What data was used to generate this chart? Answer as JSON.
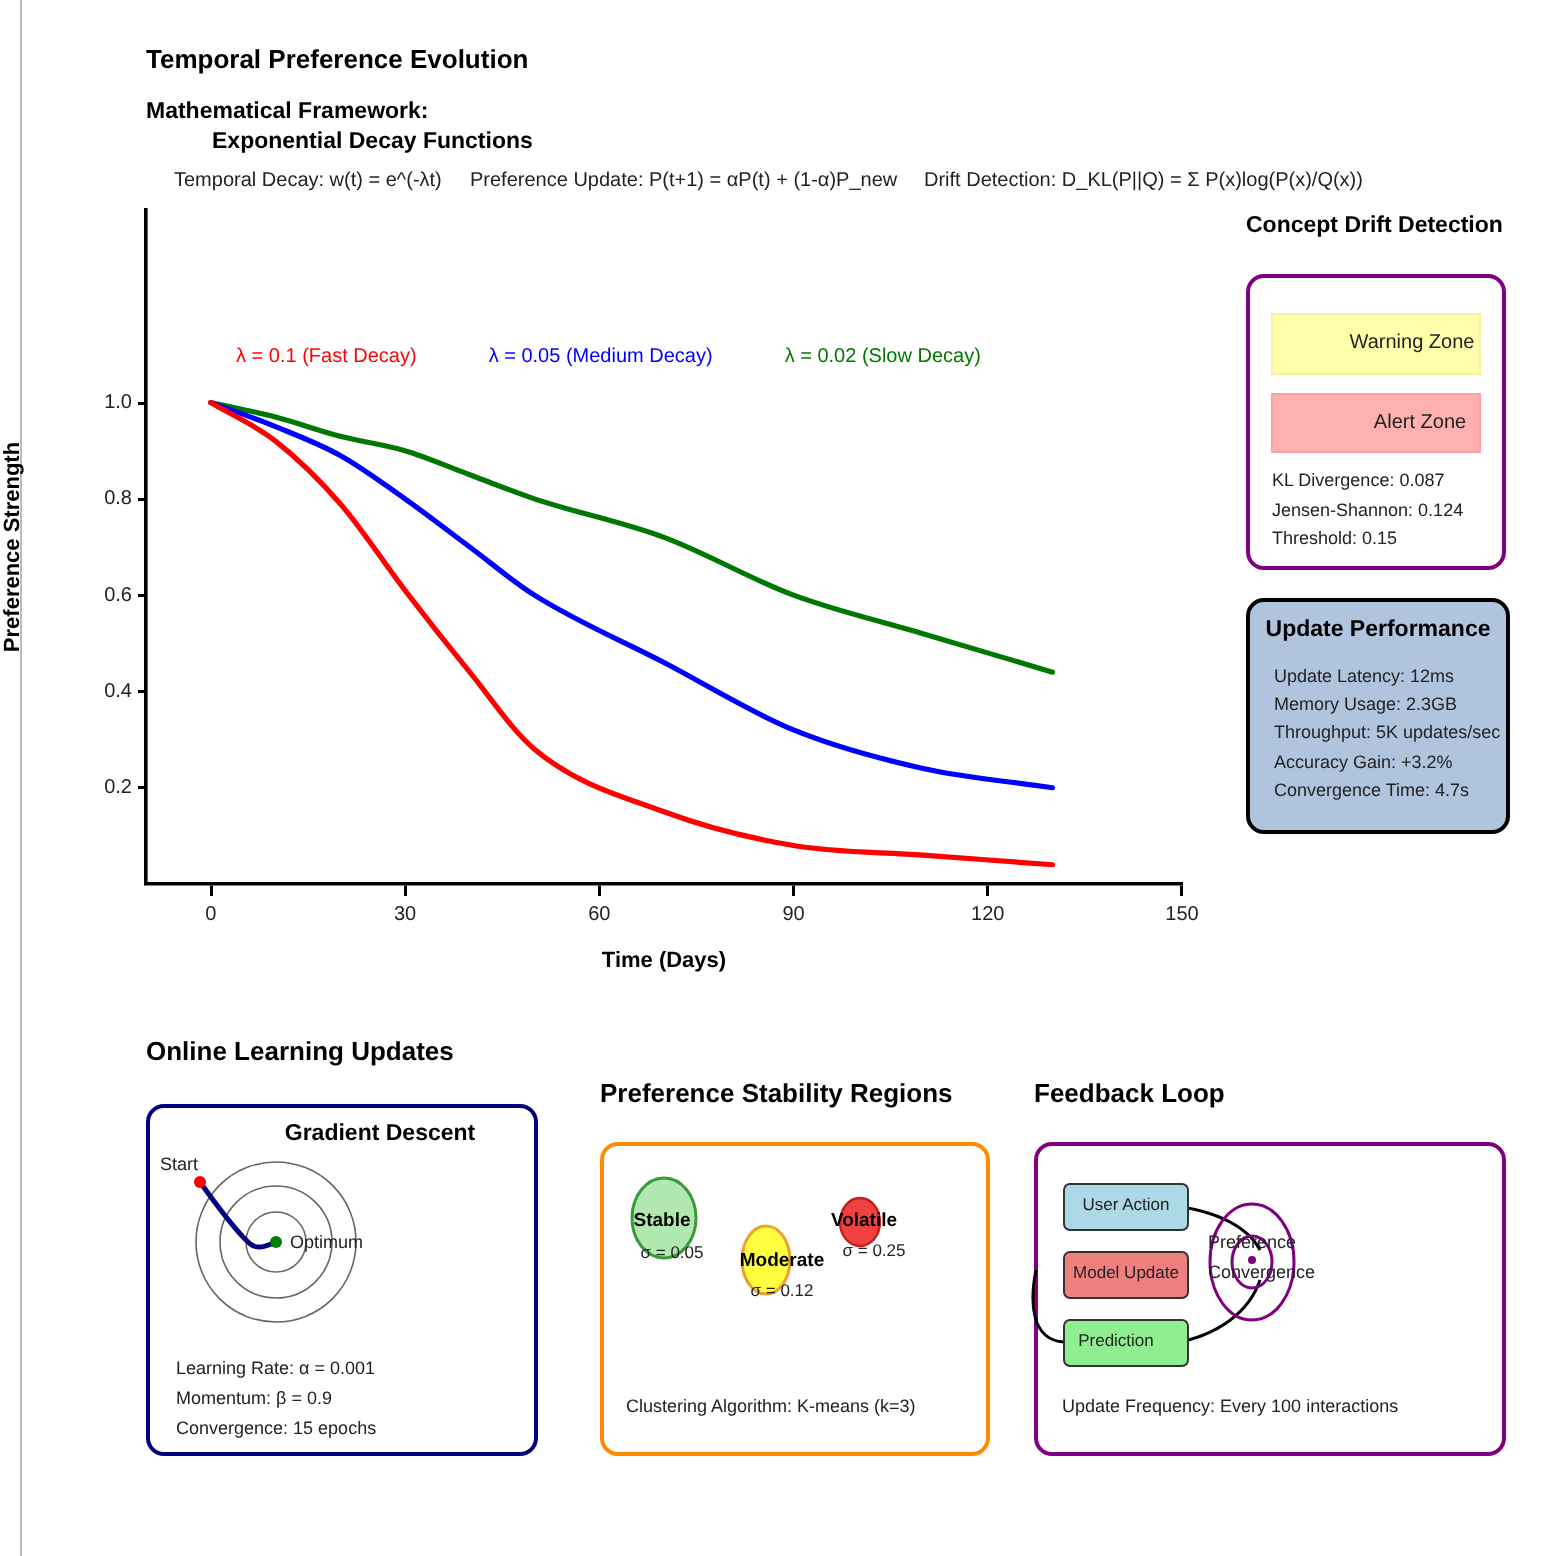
{
  "chart_data": [
    {
      "type": "line",
      "title": "Temporal Preference Evolution",
      "subtitle": "Mathematical Framework:",
      "annotations": [
        "Exponential Decay Functions",
        "Temporal Decay: w(t) = e^(-λt)",
        "Preference Update: P(t+1) = αP(t) + (1-α)P_new",
        "Drift Detection: D_KL(P||Q) = Σ P(x)log(P(x)/Q(x))"
      ],
      "xlabel": "Time (Days)",
      "ylabel": "Preference Strength",
      "x": [
        0,
        10,
        20,
        30,
        40,
        50,
        70,
        90,
        110,
        130
      ],
      "series": [
        {
          "name": "λ = 0.1 (Fast Decay)",
          "color": "#ff0000",
          "values": [
            1.0,
            0.92,
            0.79,
            0.61,
            0.44,
            0.28,
            0.15,
            0.08,
            0.06,
            0.04
          ]
        },
        {
          "name": "λ = 0.05 (Medium Decay)",
          "color": "#0000ff",
          "values": [
            1.0,
            0.95,
            0.89,
            0.8,
            0.7,
            0.6,
            0.46,
            0.32,
            0.24,
            0.2
          ]
        },
        {
          "name": "λ = 0.02 (Slow Decay)",
          "color": "#007700",
          "values": [
            1.0,
            0.97,
            0.93,
            0.9,
            0.85,
            0.8,
            0.72,
            0.6,
            0.52,
            0.44
          ]
        }
      ],
      "xlim": [
        -10,
        150
      ],
      "ylim": [
        0,
        1.4
      ],
      "xticks": [
        0,
        30,
        60,
        90,
        120,
        150
      ],
      "yticks": [
        0.2,
        0.4,
        0.6,
        0.8,
        {
          "value": 1.0,
          "label": "1.0"
        }
      ],
      "grid": false,
      "legend": false,
      "marker": "none",
      "line_style": "solid"
    },
    {
      "type": "other",
      "title": "Concept Drift Detection",
      "annotations": [
        "Warning Zone",
        "Alert Zone",
        "KL Divergence: 0.087",
        "Jensen-Shannon: 0.124",
        "Threshold: 0.15"
      ]
    },
    {
      "type": "other",
      "title": "Update Performance",
      "annotations": [
        "Update Latency: 12ms",
        "Memory Usage: 2.3GB",
        "Throughput: 5K updates/sec",
        "Accuracy Gain: +3.2%",
        "Convergence Time: 4.7s"
      ]
    },
    {
      "type": "other",
      "title": "Online Learning Updates",
      "subtitle": "Gradient Descent",
      "annotations": [
        "Start",
        "Optimum",
        "Learning Rate: α = 0.001",
        "Momentum: β = 0.9",
        "Convergence: 15 epochs"
      ]
    },
    {
      "type": "other",
      "title": "Preference Stability Regions",
      "annotations": [
        "Stable",
        "σ = 0.05",
        "Moderate",
        "σ = 0.12",
        "Volatile",
        "σ = 0.25",
        "Clustering Algorithm: K-means (k=3)"
      ]
    },
    {
      "type": "other",
      "title": "Feedback Loop",
      "annotations": [
        "User Action",
        "Model Update",
        "Prediction",
        "Preference",
        "Convergence",
        "Update Frequency: Every 100 interactions"
      ]
    }
  ]
}
